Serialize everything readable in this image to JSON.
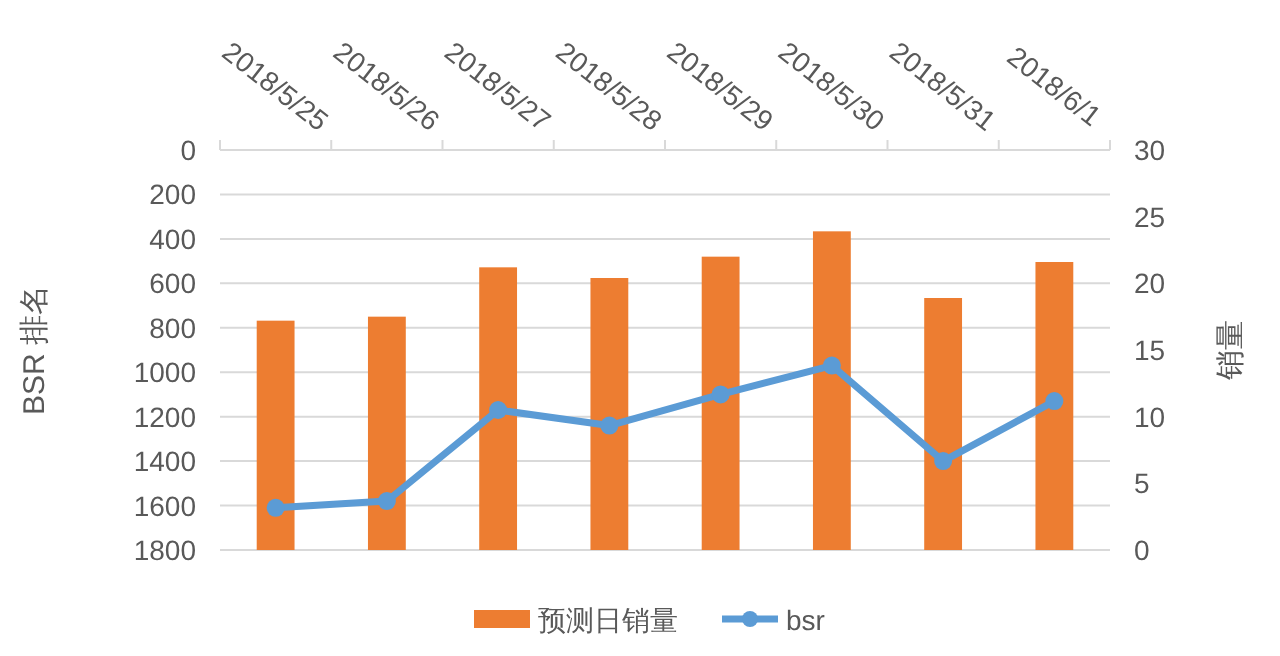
{
  "chart_data": {
    "type": "bar",
    "categories": [
      "2018/5/25",
      "2018/5/26",
      "2018/5/27",
      "2018/5/28",
      "2018/5/29",
      "2018/5/30",
      "2018/5/31",
      "2018/6/1"
    ],
    "series": [
      {
        "name": "预测日销量",
        "axis": "y2",
        "color": "#ed7d31",
        "values": [
          17.2,
          17.5,
          21.2,
          20.4,
          22.0,
          23.9,
          18.9,
          21.6
        ]
      },
      {
        "name": "bsr",
        "type": "line",
        "color": "#5b9bd5",
        "marker": "circle",
        "values": [
          1610,
          1580,
          1170,
          1240,
          1100,
          970,
          1400,
          1130
        ]
      }
    ],
    "ylabel": "BSR 排名",
    "y2label": "销量",
    "ylim": [
      1800,
      0
    ],
    "yticks": [
      0,
      200,
      400,
      600,
      800,
      1000,
      1200,
      1400,
      1600,
      1800
    ],
    "y2lim": [
      0,
      30
    ],
    "y2ticks": [
      0,
      5,
      10,
      15,
      20,
      25,
      30
    ],
    "grid": "y",
    "legend": "bottom"
  }
}
